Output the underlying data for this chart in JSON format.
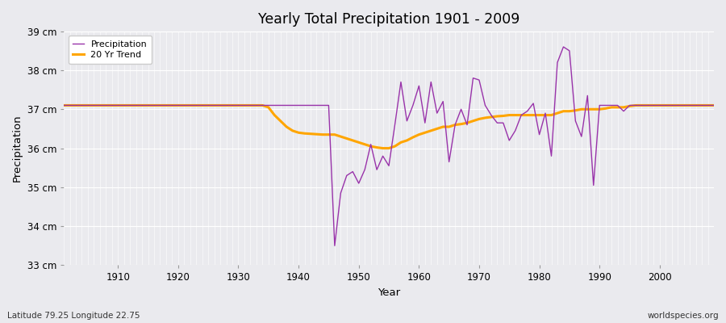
{
  "title": "Yearly Total Precipitation 1901 - 2009",
  "xlabel": "Year",
  "ylabel": "Precipitation",
  "subtitle_left": "Latitude 79.25 Longitude 22.75",
  "subtitle_right": "worldspecies.org",
  "precip_color": "#9933AA",
  "trend_color": "#FFA500",
  "background_color": "#EAEAEE",
  "plot_bg_color": "#EAEAEE",
  "grid_color": "#ffffff",
  "legend_labels": [
    "Precipitation",
    "20 Yr Trend"
  ],
  "ylim": [
    33.0,
    39.0
  ],
  "xlim": [
    1901,
    2009
  ],
  "ytick_labels": [
    "33 cm",
    "34 cm",
    "35 cm",
    "36 cm",
    "37 cm",
    "38 cm",
    "39 cm"
  ],
  "ytick_values": [
    33,
    34,
    35,
    36,
    37,
    38,
    39
  ],
  "xtick_values": [
    1910,
    1920,
    1930,
    1940,
    1950,
    1960,
    1970,
    1980,
    1990,
    2000
  ],
  "years": [
    1901,
    1902,
    1903,
    1904,
    1905,
    1906,
    1907,
    1908,
    1909,
    1910,
    1911,
    1912,
    1913,
    1914,
    1915,
    1916,
    1917,
    1918,
    1919,
    1920,
    1921,
    1922,
    1923,
    1924,
    1925,
    1926,
    1927,
    1928,
    1929,
    1930,
    1931,
    1932,
    1933,
    1934,
    1935,
    1936,
    1937,
    1938,
    1939,
    1940,
    1941,
    1942,
    1943,
    1944,
    1945,
    1946,
    1947,
    1948,
    1949,
    1950,
    1951,
    1952,
    1953,
    1954,
    1955,
    1956,
    1957,
    1958,
    1959,
    1960,
    1961,
    1962,
    1963,
    1964,
    1965,
    1966,
    1967,
    1968,
    1969,
    1970,
    1971,
    1972,
    1973,
    1974,
    1975,
    1976,
    1977,
    1978,
    1979,
    1980,
    1981,
    1982,
    1983,
    1984,
    1985,
    1986,
    1987,
    1988,
    1989,
    1990,
    1991,
    1992,
    1993,
    1994,
    1995,
    1996,
    1997,
    1998,
    1999,
    2000,
    2001,
    2002,
    2003,
    2004,
    2005,
    2006,
    2007,
    2008,
    2009
  ],
  "precip": [
    37.1,
    37.1,
    37.1,
    37.1,
    37.1,
    37.1,
    37.1,
    37.1,
    37.1,
    37.1,
    37.1,
    37.1,
    37.1,
    37.1,
    37.1,
    37.1,
    37.1,
    37.1,
    37.1,
    37.1,
    37.1,
    37.1,
    37.1,
    37.1,
    37.1,
    37.1,
    37.1,
    37.1,
    37.1,
    37.1,
    37.1,
    37.1,
    37.1,
    37.1,
    37.1,
    37.1,
    37.1,
    37.1,
    37.1,
    37.1,
    37.1,
    37.1,
    37.1,
    37.1,
    37.1,
    33.5,
    34.85,
    35.3,
    35.4,
    35.1,
    35.45,
    36.1,
    35.45,
    35.8,
    35.55,
    36.6,
    37.7,
    36.7,
    37.1,
    37.6,
    36.65,
    37.7,
    36.9,
    37.2,
    35.65,
    36.6,
    37.0,
    36.6,
    37.8,
    37.75,
    37.1,
    36.85,
    36.65,
    36.65,
    36.2,
    36.45,
    36.85,
    36.95,
    37.15,
    36.35,
    36.9,
    35.8,
    38.2,
    38.6,
    38.5,
    36.7,
    36.3,
    37.35,
    35.05,
    37.1,
    37.1,
    37.1,
    37.1,
    36.95,
    37.1,
    37.1,
    37.1,
    37.1,
    37.1,
    37.1,
    37.1,
    37.1,
    37.1,
    37.1,
    37.1,
    37.1,
    37.1,
    37.1,
    37.1
  ],
  "trend": [
    37.1,
    37.1,
    37.1,
    37.1,
    37.1,
    37.1,
    37.1,
    37.1,
    37.1,
    37.1,
    37.1,
    37.1,
    37.1,
    37.1,
    37.1,
    37.1,
    37.1,
    37.1,
    37.1,
    37.1,
    37.1,
    37.1,
    37.1,
    37.1,
    37.1,
    37.1,
    37.1,
    37.1,
    37.1,
    37.1,
    37.1,
    37.1,
    37.1,
    37.1,
    37.05,
    36.85,
    36.7,
    36.55,
    36.45,
    36.4,
    36.38,
    36.37,
    36.36,
    36.35,
    36.35,
    36.35,
    36.3,
    36.25,
    36.2,
    36.15,
    36.1,
    36.05,
    36.02,
    36.0,
    36.0,
    36.05,
    36.15,
    36.2,
    36.28,
    36.35,
    36.4,
    36.45,
    36.5,
    36.55,
    36.55,
    36.6,
    36.62,
    36.65,
    36.7,
    36.75,
    36.78,
    36.8,
    36.82,
    36.83,
    36.85,
    36.85,
    36.85,
    36.85,
    36.85,
    36.85,
    36.85,
    36.85,
    36.9,
    36.95,
    36.95,
    36.97,
    37.0,
    37.0,
    37.0,
    37.0,
    37.02,
    37.05,
    37.05,
    37.05,
    37.08,
    37.1,
    37.1,
    37.1,
    37.1,
    37.1,
    37.1,
    37.1,
    37.1,
    37.1,
    37.1,
    37.1,
    37.1,
    37.1,
    37.1
  ]
}
